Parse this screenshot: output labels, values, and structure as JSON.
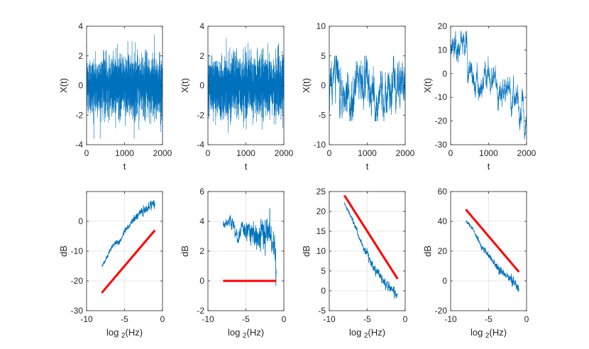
{
  "chart_data": [
    {
      "type": "line",
      "series": [
        {
          "values": []
        }
      ],
      "ylabel": "X(t)",
      "xlabel": "t",
      "xlim": [
        0,
        2000
      ],
      "ylim": [
        -4,
        4
      ],
      "xticks": [
        0,
        1000,
        2000
      ],
      "yticks": [
        -4,
        -2,
        0,
        2,
        4
      ],
      "signal": {
        "kind": "white",
        "amplitude": 1.0,
        "n": 2000,
        "min_seen": -3.6,
        "max_seen": 3.5
      },
      "color": "#0072BD",
      "grid": false
    },
    {
      "type": "line",
      "series": [
        {
          "values": []
        }
      ],
      "ylabel": "X(t)",
      "xlabel": "t",
      "xlim": [
        0,
        2000
      ],
      "ylim": [
        -4,
        4
      ],
      "xticks": [
        0,
        1000,
        2000
      ],
      "yticks": [
        -4,
        -2,
        0,
        2,
        4
      ],
      "signal": {
        "kind": "white",
        "amplitude": 1.0,
        "n": 2000,
        "min_seen": -3.2,
        "max_seen": 3.3
      },
      "color": "#0072BD",
      "grid": false
    },
    {
      "type": "line",
      "series": [
        {
          "values": []
        }
      ],
      "ylabel": "X(t)",
      "xlabel": "t",
      "xlim": [
        0,
        2000
      ],
      "ylim": [
        -10,
        10
      ],
      "xticks": [
        0,
        1000,
        2000
      ],
      "yticks": [
        -10,
        -5,
        0,
        5,
        10
      ],
      "signal": {
        "kind": "pink",
        "n": 2000,
        "keypoints": [
          [
            0,
            2
          ],
          [
            200,
            1.5
          ],
          [
            400,
            -1
          ],
          [
            600,
            -3
          ],
          [
            800,
            1
          ],
          [
            1000,
            0.5
          ],
          [
            1200,
            -3
          ],
          [
            1400,
            -2.5
          ],
          [
            1600,
            -1
          ],
          [
            1800,
            0
          ],
          [
            2000,
            -1
          ]
        ],
        "min_seen": -6,
        "max_seen": 5
      },
      "color": "#0072BD",
      "grid": false
    },
    {
      "type": "line",
      "series": [
        {
          "values": []
        }
      ],
      "ylabel": "X(t)",
      "xlabel": "t",
      "xlim": [
        0,
        2000
      ],
      "ylim": [
        -30,
        20
      ],
      "xticks": [
        0,
        1000,
        2000
      ],
      "yticks": [
        -30,
        -20,
        -10,
        0,
        10,
        20
      ],
      "signal": {
        "kind": "brown",
        "n": 2000,
        "keypoints": [
          [
            0,
            10
          ],
          [
            150,
            12
          ],
          [
            300,
            15
          ],
          [
            450,
            5
          ],
          [
            600,
            -2
          ],
          [
            800,
            -5
          ],
          [
            1000,
            3
          ],
          [
            1200,
            -5
          ],
          [
            1400,
            -8
          ],
          [
            1600,
            -7
          ],
          [
            1800,
            -18
          ],
          [
            2000,
            -25
          ]
        ],
        "min_seen": -30,
        "max_seen": 18
      },
      "color": "#0072BD",
      "grid": false
    },
    {
      "type": "line",
      "ylabel": "dB",
      "xlabel": "log 2(Hz)",
      "xlim": [
        -10,
        0
      ],
      "ylim": [
        -30,
        10
      ],
      "xticks": [
        -10,
        -5,
        0
      ],
      "yticks": [
        -30,
        -20,
        -10,
        0
      ],
      "grid": true,
      "series": [
        {
          "color": "#0072BD",
          "x": [
            -8,
            -7.5,
            -7,
            -6.5,
            -6,
            -5.5,
            -5,
            -4.5,
            -4,
            -3.5,
            -3,
            -2.5,
            -2,
            -1.5,
            -1.2,
            -1
          ],
          "values": [
            -15,
            -13,
            -10,
            -8,
            -7,
            -6.5,
            -3,
            -2,
            0,
            1.5,
            2.5,
            3.5,
            4.5,
            5.5,
            6,
            5.5
          ],
          "noise": 0.8
        },
        {
          "color": "#FF0000",
          "x": [
            -8,
            -1
          ],
          "values": [
            -24,
            -3
          ],
          "width": 3
        }
      ]
    },
    {
      "type": "line",
      "ylabel": "dB",
      "xlabel": "log 2(Hz)",
      "xlim": [
        -10,
        0
      ],
      "ylim": [
        -2,
        6
      ],
      "xticks": [
        -10,
        -5,
        0
      ],
      "yticks": [
        -2,
        0,
        2,
        4,
        6
      ],
      "grid": true,
      "series": [
        {
          "color": "#0072BD",
          "x": [
            -8,
            -7.5,
            -7,
            -6.5,
            -6,
            -5.5,
            -5,
            -4.5,
            -4,
            -3.5,
            -3,
            -2.5,
            -2,
            -1.5,
            -1.2,
            -1
          ],
          "values": [
            3.7,
            3.9,
            4.1,
            3.6,
            2.6,
            3.9,
            3.2,
            3.3,
            3.4,
            2.8,
            3.3,
            2.9,
            3.4,
            2.7,
            2.0,
            0.5
          ],
          "noise": 0.5
        },
        {
          "color": "#FF0000",
          "x": [
            -8,
            -1
          ],
          "values": [
            0,
            0
          ],
          "width": 3
        }
      ]
    },
    {
      "type": "line",
      "ylabel": "dB",
      "xlabel": "log 2(Hz)",
      "xlim": [
        -10,
        0
      ],
      "ylim": [
        -5,
        25
      ],
      "xticks": [
        -10,
        -5,
        0
      ],
      "yticks": [
        -5,
        0,
        5,
        10,
        15,
        20,
        25
      ],
      "grid": true,
      "series": [
        {
          "color": "#0072BD",
          "x": [
            -8,
            -7.5,
            -7,
            -6.5,
            -6,
            -5.5,
            -5,
            -4.5,
            -4,
            -3.5,
            -3,
            -2.5,
            -2,
            -1.5,
            -1
          ],
          "values": [
            22,
            20,
            18,
            16,
            13,
            11,
            9.5,
            7,
            5.5,
            4.5,
            3,
            2,
            1,
            0,
            -1
          ],
          "noise": 0.7
        },
        {
          "color": "#FF0000",
          "x": [
            -8,
            -1
          ],
          "values": [
            24,
            3
          ],
          "width": 3
        }
      ]
    },
    {
      "type": "line",
      "ylabel": "dB",
      "xlabel": "log 2(Hz)",
      "xlim": [
        -10,
        0
      ],
      "ylim": [
        -20,
        60
      ],
      "xticks": [
        -10,
        -5,
        0
      ],
      "yticks": [
        -20,
        0,
        20,
        40,
        60
      ],
      "grid": true,
      "series": [
        {
          "color": "#0072BD",
          "x": [
            -8,
            -7.5,
            -7,
            -6.5,
            -6,
            -5.5,
            -5,
            -4.5,
            -4,
            -3.5,
            -3,
            -2.5,
            -2,
            -1.5,
            -1
          ],
          "values": [
            40,
            38,
            34,
            29,
            23,
            21,
            17,
            14,
            10,
            7,
            5,
            3,
            1,
            -2,
            -5
          ],
          "noise": 1.5
        },
        {
          "color": "#FF0000",
          "x": [
            -8,
            -1
          ],
          "values": [
            48,
            6
          ],
          "width": 3
        }
      ]
    }
  ]
}
